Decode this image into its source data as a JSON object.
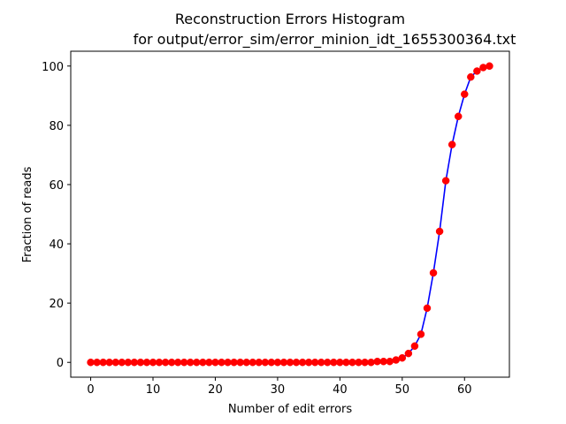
{
  "chart_data": {
    "type": "line",
    "title_line1": "Reconstruction Errors Histogram",
    "title_line2": "for output/error_sim/error_minion_idt_1655300364.txt",
    "xlabel": "Number of edit errors",
    "ylabel": "Fraction of reads",
    "xlim": [
      -3.2,
      67.2
    ],
    "ylim": [
      -5,
      105
    ],
    "x_ticks": [
      0,
      10,
      20,
      30,
      40,
      50,
      60
    ],
    "y_ticks": [
      0,
      20,
      40,
      60,
      80,
      100
    ],
    "grid": false,
    "line_color": "#0000ff",
    "marker_color": "#ff0000",
    "x": [
      0,
      1,
      2,
      3,
      4,
      5,
      6,
      7,
      8,
      9,
      10,
      11,
      12,
      13,
      14,
      15,
      16,
      17,
      18,
      19,
      20,
      21,
      22,
      23,
      24,
      25,
      26,
      27,
      28,
      29,
      30,
      31,
      32,
      33,
      34,
      35,
      36,
      37,
      38,
      39,
      40,
      41,
      42,
      43,
      44,
      45,
      46,
      47,
      48,
      49,
      50,
      51,
      52,
      53,
      54,
      55,
      56,
      57,
      58,
      59,
      60,
      61,
      62,
      63,
      64
    ],
    "values": [
      0,
      0,
      0,
      0,
      0,
      0,
      0,
      0,
      0,
      0,
      0,
      0,
      0,
      0,
      0,
      0,
      0,
      0,
      0,
      0,
      0,
      0,
      0,
      0,
      0,
      0,
      0,
      0,
      0,
      0,
      0,
      0,
      0,
      0,
      0,
      0,
      0,
      0,
      0,
      0,
      0,
      0,
      0,
      0,
      0,
      0,
      0.3,
      0.3,
      0.3,
      0.8,
      1.5,
      3,
      5.5,
      9.5,
      18.3,
      30.2,
      44.2,
      61.3,
      73.5,
      83,
      90.5,
      96.3,
      98.3,
      99.5,
      100
    ]
  }
}
